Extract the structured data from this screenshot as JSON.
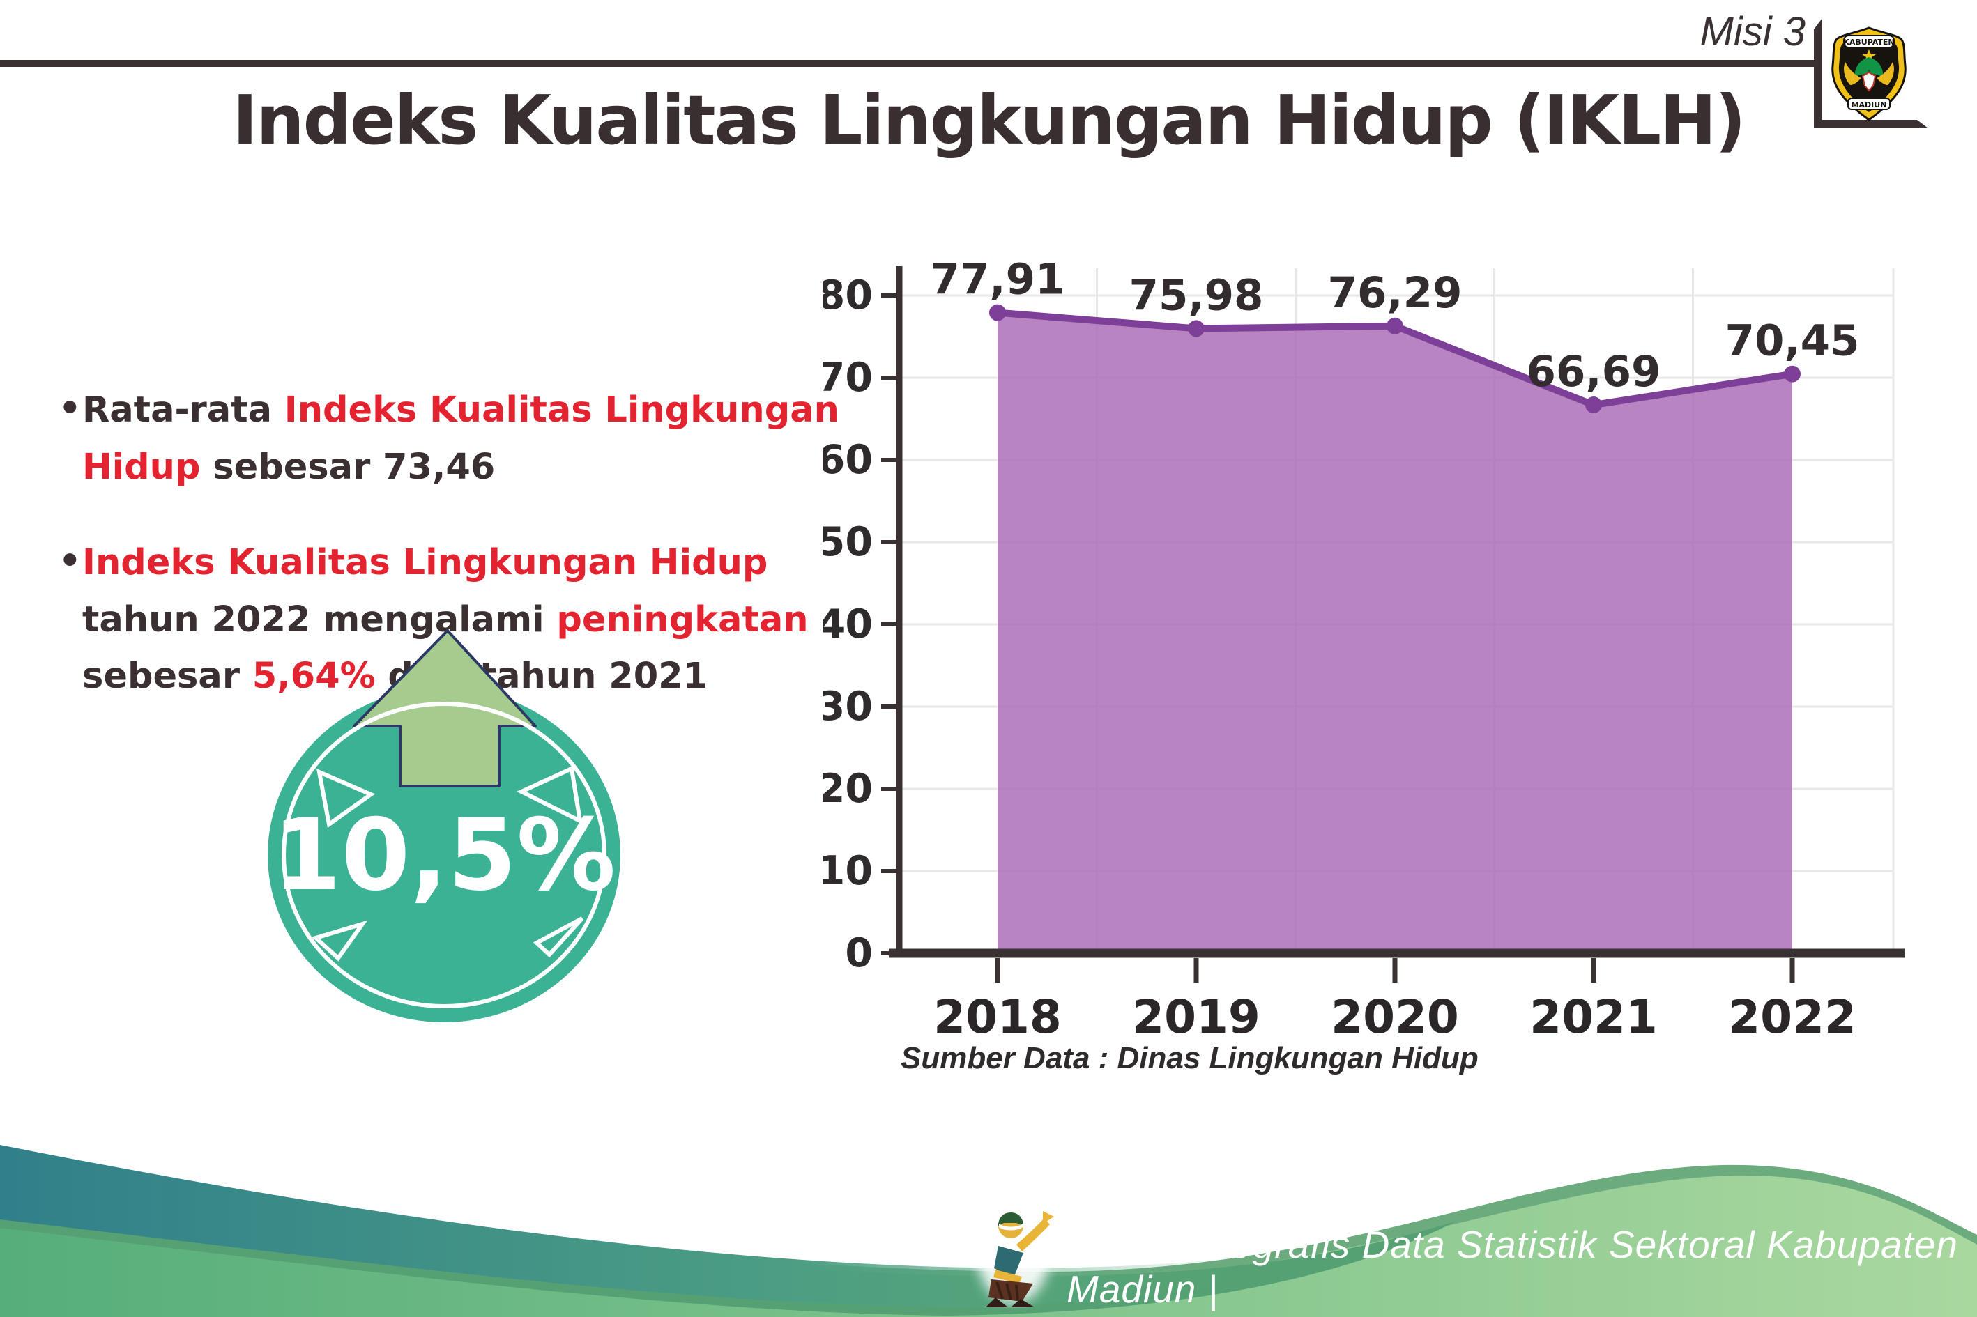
{
  "header": {
    "misi_label": "Misi 3",
    "title": "Indeks Kualitas Lingkungan Hidup (IKLH)",
    "logo": {
      "top_text": "KABUPATEN",
      "bottom_text": "MADIUN"
    }
  },
  "bullets": [
    {
      "segments": [
        {
          "text": "Rata-rata ",
          "color": "dark"
        },
        {
          "text": "Indeks Kualitas Lingkungan Hidup",
          "color": "red"
        },
        {
          "text": " sebesar 73,46",
          "color": "dark"
        }
      ]
    },
    {
      "segments": [
        {
          "text": "Indeks Kualitas Lingkungan Hidup",
          "color": "red"
        },
        {
          "text": " tahun 2022 mengalami ",
          "color": "dark"
        },
        {
          "text": "peningkatan",
          "color": "red"
        },
        {
          "text": " sebesar ",
          "color": "dark"
        },
        {
          "text": "5,64%",
          "color": "red"
        },
        {
          "text": " dari tahun 2021",
          "color": "dark"
        }
      ]
    }
  ],
  "badge": {
    "value": "10,5%",
    "circle_color": "#3cb295",
    "arrow_color": "#a6cb8e",
    "arrow_outline_color": "#2c3a63"
  },
  "chart_data": {
    "type": "area",
    "title": "",
    "categories": [
      "2018",
      "2019",
      "2020",
      "2021",
      "2022"
    ],
    "values": [
      77.91,
      75.98,
      76.29,
      66.69,
      70.45
    ],
    "value_labels": [
      "77,91",
      "75,98",
      "76,29",
      "66,69",
      "70,45"
    ],
    "xlabel": "",
    "ylabel": "",
    "ylim": [
      0,
      80
    ],
    "ytick_step": 10,
    "grid": true,
    "legend": "none",
    "line_color": "#7d3f98",
    "marker_color": "#7d3f98",
    "fill_color": "rgba(169,105,180,0.82)",
    "axis_color": "#3a3132",
    "gridline_color": "#e9e7e8",
    "source_note": "Sumber Data : Dinas Lingkungan Hidup"
  },
  "footer": {
    "text": "Media Infografis Data Statistik Sektoral Kabupaten Madiun |"
  },
  "colors": {
    "dark_text": "#3a3032",
    "red_text": "#e32430",
    "teal_badge": "#3cb295",
    "wave_teal": "#30808b",
    "wave_green_light": "#a9d89f",
    "wave_green": "#56ae7a"
  }
}
